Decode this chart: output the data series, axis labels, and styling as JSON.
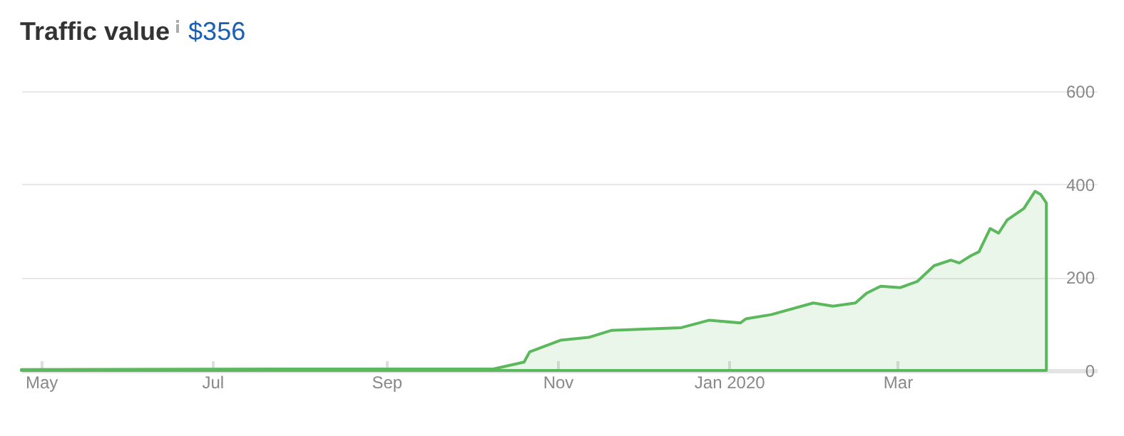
{
  "chart_data": {
    "type": "area",
    "title": "Traffic value",
    "subtitle": "$356",
    "x": [
      "2019-04-24",
      "2019-07-27",
      "2019-10-09",
      "2019-10-20",
      "2019-10-22",
      "2019-11-02",
      "2019-11-12",
      "2019-11-20",
      "2019-12-03",
      "2019-12-15",
      "2019-12-25",
      "2020-01-05",
      "2020-01-07",
      "2020-01-16",
      "2020-01-31",
      "2020-02-07",
      "2020-02-15",
      "2020-02-19",
      "2020-02-24",
      "2020-03-02",
      "2020-03-08",
      "2020-03-14",
      "2020-03-20",
      "2020-03-23",
      "2020-03-27",
      "2020-03-30",
      "2020-04-03",
      "2020-04-06",
      "2020-04-09",
      "2020-04-15",
      "2020-04-19",
      "2020-04-21",
      "2020-04-23"
    ],
    "series": [
      {
        "color": "#5cb85c",
        "values": [
          2,
          3,
          3,
          18,
          40,
          65,
          71,
          86,
          89,
          92,
          108,
          102,
          111,
          120,
          145,
          138,
          145,
          166,
          181,
          178,
          191,
          225,
          237,
          231,
          246,
          255,
          305,
          295,
          323,
          348,
          385,
          378,
          360
        ]
      }
    ],
    "xlim": [
      "2019-04-24",
      "2020-05-11"
    ],
    "xticks": [
      {
        "value": "2019-05-01",
        "label": "May"
      },
      {
        "value": "2019-07-01",
        "label": "Jul"
      },
      {
        "value": "2019-09-01",
        "label": "Sep"
      },
      {
        "value": "2019-11-01",
        "label": "Nov"
      },
      {
        "value": "2020-01-01",
        "label": "Jan 2020"
      },
      {
        "value": "2020-03-01",
        "label": "Mar"
      }
    ],
    "ylim": [
      0,
      600
    ],
    "yticks": [
      0,
      200,
      400,
      600
    ],
    "grid": "y"
  }
}
